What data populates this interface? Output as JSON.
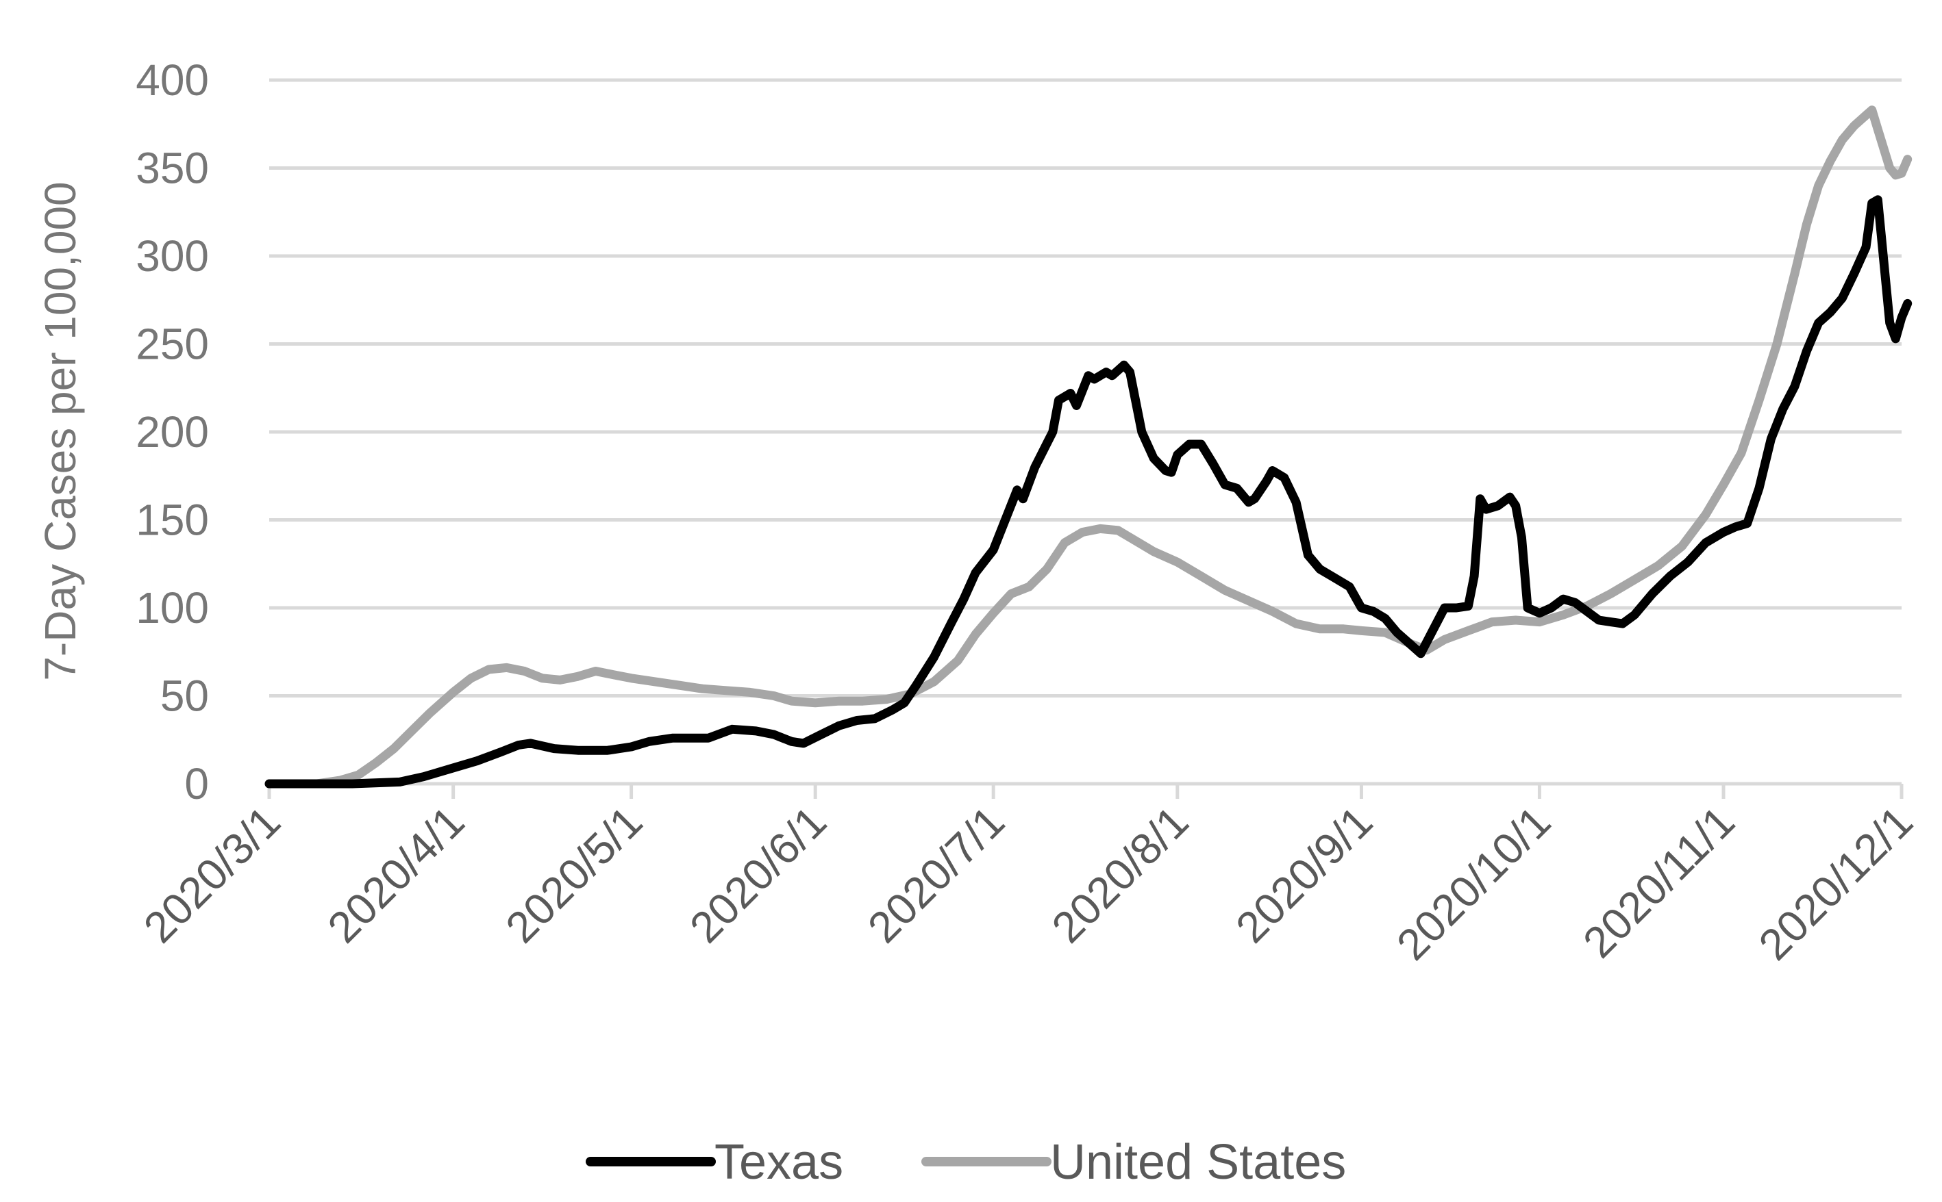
{
  "chart_data": {
    "type": "line",
    "title": "",
    "xlabel": "",
    "ylabel": "7-Day Cases per 100,000",
    "ylim": [
      0,
      400
    ],
    "y_ticks": [
      "0",
      "50",
      "100",
      "150",
      "200",
      "250",
      "300",
      "350",
      "400"
    ],
    "x_range": [
      "2020-03-01",
      "2020-12-01"
    ],
    "x_ticks": [
      {
        "date": "2020-03-01",
        "label": "2020/3/1"
      },
      {
        "date": "2020-04-01",
        "label": "2020/4/1"
      },
      {
        "date": "2020-05-01",
        "label": "2020/5/1"
      },
      {
        "date": "2020-06-01",
        "label": "2020/6/1"
      },
      {
        "date": "2020-07-01",
        "label": "2020/7/1"
      },
      {
        "date": "2020-08-01",
        "label": "2020/8/1"
      },
      {
        "date": "2020-09-01",
        "label": "2020/9/1"
      },
      {
        "date": "2020-10-01",
        "label": "2020/10/1"
      },
      {
        "date": "2020-11-01",
        "label": "2020/11/1"
      },
      {
        "date": "2020-12-01",
        "label": "2020/12/1"
      }
    ],
    "grid": true,
    "legend_position": "bottom",
    "series": [
      {
        "name": "Texas",
        "color": "#000000",
        "points": [
          [
            "2020-03-01",
            0
          ],
          [
            "2020-03-15",
            0
          ],
          [
            "2020-03-23",
            1
          ],
          [
            "2020-03-27",
            4
          ],
          [
            "2020-04-01",
            9
          ],
          [
            "2020-04-05",
            13
          ],
          [
            "2020-04-09",
            18
          ],
          [
            "2020-04-12",
            22
          ],
          [
            "2020-04-14",
            23
          ],
          [
            "2020-04-18",
            20
          ],
          [
            "2020-04-22",
            19
          ],
          [
            "2020-04-27",
            19
          ],
          [
            "2020-05-01",
            21
          ],
          [
            "2020-05-04",
            24
          ],
          [
            "2020-05-08",
            26
          ],
          [
            "2020-05-14",
            26
          ],
          [
            "2020-05-18",
            31
          ],
          [
            "2020-05-22",
            30
          ],
          [
            "2020-05-25",
            28
          ],
          [
            "2020-05-28",
            24
          ],
          [
            "2020-05-30",
            23
          ],
          [
            "2020-06-02",
            28
          ],
          [
            "2020-06-05",
            33
          ],
          [
            "2020-06-08",
            36
          ],
          [
            "2020-06-11",
            37
          ],
          [
            "2020-06-14",
            42
          ],
          [
            "2020-06-16",
            46
          ],
          [
            "2020-06-18",
            56
          ],
          [
            "2020-06-21",
            72
          ],
          [
            "2020-06-24",
            92
          ],
          [
            "2020-06-26",
            105
          ],
          [
            "2020-06-28",
            120
          ],
          [
            "2020-07-01",
            133
          ],
          [
            "2020-07-03",
            150
          ],
          [
            "2020-07-05",
            167
          ],
          [
            "2020-07-06",
            162
          ],
          [
            "2020-07-08",
            180
          ],
          [
            "2020-07-11",
            200
          ],
          [
            "2020-07-12",
            218
          ],
          [
            "2020-07-14",
            222
          ],
          [
            "2020-07-15",
            215
          ],
          [
            "2020-07-17",
            232
          ],
          [
            "2020-07-18",
            230
          ],
          [
            "2020-07-20",
            234
          ],
          [
            "2020-07-21",
            232
          ],
          [
            "2020-07-23",
            238
          ],
          [
            "2020-07-24",
            234
          ],
          [
            "2020-07-26",
            200
          ],
          [
            "2020-07-28",
            185
          ],
          [
            "2020-07-30",
            178
          ],
          [
            "2020-07-31",
            177
          ],
          [
            "2020-08-01",
            187
          ],
          [
            "2020-08-03",
            193
          ],
          [
            "2020-08-05",
            193
          ],
          [
            "2020-08-07",
            182
          ],
          [
            "2020-08-09",
            170
          ],
          [
            "2020-08-11",
            168
          ],
          [
            "2020-08-13",
            160
          ],
          [
            "2020-08-14",
            162
          ],
          [
            "2020-08-16",
            172
          ],
          [
            "2020-08-17",
            178
          ],
          [
            "2020-08-19",
            174
          ],
          [
            "2020-08-21",
            160
          ],
          [
            "2020-08-23",
            130
          ],
          [
            "2020-08-25",
            122
          ],
          [
            "2020-08-27",
            118
          ],
          [
            "2020-08-30",
            112
          ],
          [
            "2020-09-01",
            100
          ],
          [
            "2020-09-03",
            98
          ],
          [
            "2020-09-05",
            94
          ],
          [
            "2020-09-07",
            86
          ],
          [
            "2020-09-09",
            80
          ],
          [
            "2020-09-11",
            74
          ],
          [
            "2020-09-13",
            87
          ],
          [
            "2020-09-15",
            100
          ],
          [
            "2020-09-17",
            100
          ],
          [
            "2020-09-19",
            101
          ],
          [
            "2020-09-20",
            118
          ],
          [
            "2020-09-21",
            162
          ],
          [
            "2020-09-22",
            156
          ],
          [
            "2020-09-24",
            158
          ],
          [
            "2020-09-26",
            163
          ],
          [
            "2020-09-27",
            158
          ],
          [
            "2020-09-28",
            140
          ],
          [
            "2020-09-29",
            100
          ],
          [
            "2020-10-01",
            97
          ],
          [
            "2020-10-03",
            100
          ],
          [
            "2020-10-05",
            105
          ],
          [
            "2020-10-07",
            103
          ],
          [
            "2020-10-09",
            98
          ],
          [
            "2020-10-11",
            93
          ],
          [
            "2020-10-13",
            92
          ],
          [
            "2020-10-15",
            91
          ],
          [
            "2020-10-17",
            96
          ],
          [
            "2020-10-20",
            108
          ],
          [
            "2020-10-23",
            118
          ],
          [
            "2020-10-26",
            126
          ],
          [
            "2020-10-29",
            137
          ],
          [
            "2020-11-01",
            143
          ],
          [
            "2020-11-03",
            146
          ],
          [
            "2020-11-05",
            148
          ],
          [
            "2020-11-07",
            168
          ],
          [
            "2020-11-09",
            196
          ],
          [
            "2020-11-11",
            213
          ],
          [
            "2020-11-13",
            226
          ],
          [
            "2020-11-15",
            246
          ],
          [
            "2020-11-17",
            262
          ],
          [
            "2020-11-19",
            268
          ],
          [
            "2020-11-21",
            276
          ],
          [
            "2020-11-23",
            290
          ],
          [
            "2020-11-25",
            305
          ],
          [
            "2020-11-26",
            330
          ],
          [
            "2020-11-27",
            332
          ],
          [
            "2020-11-29",
            262
          ],
          [
            "2020-11-30",
            253
          ],
          [
            "2020-12-01",
            265
          ],
          [
            "2020-12-02",
            273
          ]
        ]
      },
      {
        "name": "United States",
        "color": "#a6a6a6",
        "points": [
          [
            "2020-03-01",
            0
          ],
          [
            "2020-03-09",
            0
          ],
          [
            "2020-03-13",
            2
          ],
          [
            "2020-03-16",
            5
          ],
          [
            "2020-03-19",
            12
          ],
          [
            "2020-03-22",
            20
          ],
          [
            "2020-03-25",
            30
          ],
          [
            "2020-03-28",
            40
          ],
          [
            "2020-04-01",
            52
          ],
          [
            "2020-04-04",
            60
          ],
          [
            "2020-04-07",
            65
          ],
          [
            "2020-04-10",
            66
          ],
          [
            "2020-04-13",
            64
          ],
          [
            "2020-04-16",
            60
          ],
          [
            "2020-04-19",
            59
          ],
          [
            "2020-04-22",
            61
          ],
          [
            "2020-04-25",
            64
          ],
          [
            "2020-04-28",
            62
          ],
          [
            "2020-05-01",
            60
          ],
          [
            "2020-05-05",
            58
          ],
          [
            "2020-05-09",
            56
          ],
          [
            "2020-05-13",
            54
          ],
          [
            "2020-05-17",
            53
          ],
          [
            "2020-05-21",
            52
          ],
          [
            "2020-05-25",
            50
          ],
          [
            "2020-05-28",
            47
          ],
          [
            "2020-06-01",
            46
          ],
          [
            "2020-06-05",
            47
          ],
          [
            "2020-06-09",
            47
          ],
          [
            "2020-06-13",
            48
          ],
          [
            "2020-06-17",
            51
          ],
          [
            "2020-06-21",
            58
          ],
          [
            "2020-06-25",
            70
          ],
          [
            "2020-06-28",
            85
          ],
          [
            "2020-07-01",
            97
          ],
          [
            "2020-07-04",
            108
          ],
          [
            "2020-07-07",
            112
          ],
          [
            "2020-07-10",
            122
          ],
          [
            "2020-07-13",
            137
          ],
          [
            "2020-07-16",
            143
          ],
          [
            "2020-07-19",
            145
          ],
          [
            "2020-07-22",
            144
          ],
          [
            "2020-07-25",
            138
          ],
          [
            "2020-07-28",
            132
          ],
          [
            "2020-08-01",
            126
          ],
          [
            "2020-08-05",
            118
          ],
          [
            "2020-08-09",
            110
          ],
          [
            "2020-08-13",
            104
          ],
          [
            "2020-08-17",
            98
          ],
          [
            "2020-08-21",
            91
          ],
          [
            "2020-08-25",
            88
          ],
          [
            "2020-08-29",
            88
          ],
          [
            "2020-09-01",
            87
          ],
          [
            "2020-09-05",
            86
          ],
          [
            "2020-09-09",
            80
          ],
          [
            "2020-09-12",
            76
          ],
          [
            "2020-09-15",
            82
          ],
          [
            "2020-09-19",
            87
          ],
          [
            "2020-09-23",
            92
          ],
          [
            "2020-09-27",
            93
          ],
          [
            "2020-10-01",
            92
          ],
          [
            "2020-10-05",
            96
          ],
          [
            "2020-10-09",
            101
          ],
          [
            "2020-10-13",
            108
          ],
          [
            "2020-10-17",
            116
          ],
          [
            "2020-10-21",
            124
          ],
          [
            "2020-10-25",
            135
          ],
          [
            "2020-10-29",
            153
          ],
          [
            "2020-11-01",
            170
          ],
          [
            "2020-11-04",
            188
          ],
          [
            "2020-11-07",
            218
          ],
          [
            "2020-11-10",
            250
          ],
          [
            "2020-11-13",
            290
          ],
          [
            "2020-11-15",
            318
          ],
          [
            "2020-11-17",
            340
          ],
          [
            "2020-11-19",
            354
          ],
          [
            "2020-11-21",
            366
          ],
          [
            "2020-11-23",
            374
          ],
          [
            "2020-11-25",
            380
          ],
          [
            "2020-11-26",
            383
          ],
          [
            "2020-11-27",
            372
          ],
          [
            "2020-11-29",
            350
          ],
          [
            "2020-11-30",
            346
          ],
          [
            "2020-12-01",
            347
          ],
          [
            "2020-12-02",
            355
          ]
        ]
      }
    ]
  }
}
